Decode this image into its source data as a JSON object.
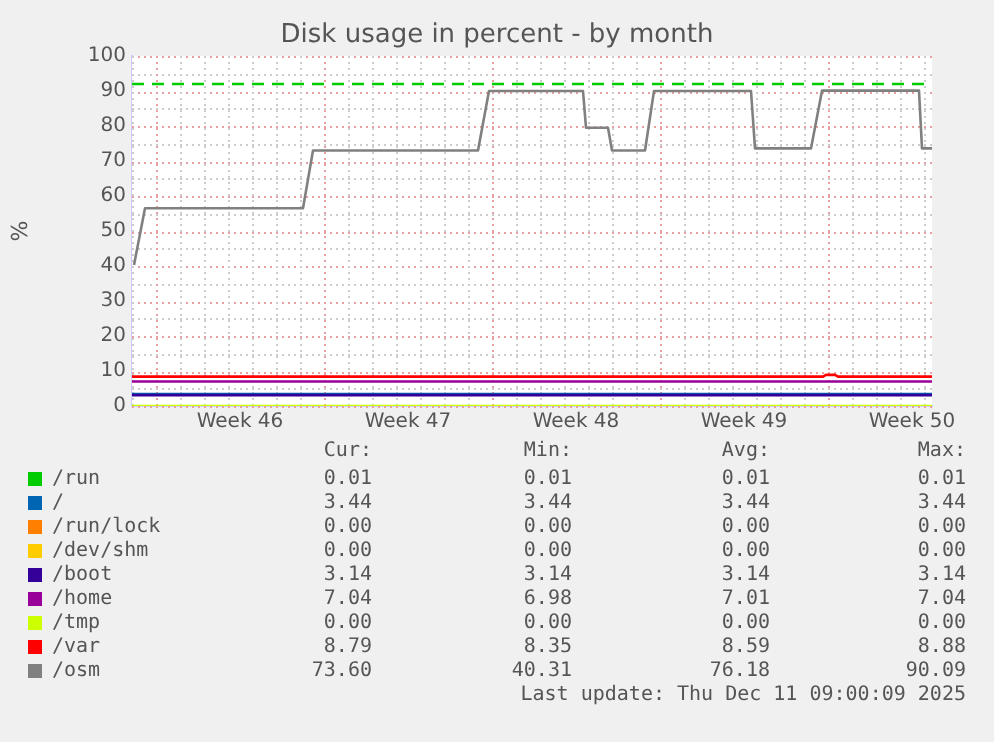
{
  "chart_data": {
    "type": "line",
    "title": "Disk usage in percent - by month",
    "ylabel": "%",
    "xlim": [
      "2025-11-09T00:00",
      "2025-12-12T08:00"
    ],
    "xticks": [
      {
        "value": "2025-11-13T12:00",
        "label": "Week 46"
      },
      {
        "value": "2025-11-20T12:00",
        "label": "Week 47"
      },
      {
        "value": "2025-11-27T12:00",
        "label": "Week 48"
      },
      {
        "value": "2025-12-04T12:00",
        "label": "Week 49"
      },
      {
        "value": "2025-12-11T12:00",
        "label": "Week 50"
      }
    ],
    "ylim": [
      0,
      100
    ],
    "yticks": [
      0,
      10,
      20,
      30,
      40,
      50,
      60,
      70,
      80,
      90,
      100
    ],
    "grid": true,
    "legend": "bottom",
    "marker": "none",
    "series": [
      {
        "name": "/run",
        "color": "#00cc00"
      },
      {
        "name": "/",
        "color": "#0066b3",
        "x": [
          "2025-11-09T00:00",
          "2025-12-12T08:00"
        ],
        "values": [
          3.4,
          3.4
        ]
      },
      {
        "name": "/run/lock",
        "color": "#ff8000"
      },
      {
        "name": "/dev/shm",
        "color": "#ffcc00"
      },
      {
        "name": "/boot",
        "color": "#330099",
        "x": [
          "2025-11-09T00:00",
          "2025-12-12T08:00"
        ],
        "values": [
          3.1,
          3.1
        ]
      },
      {
        "name": "/home",
        "color": "#990099",
        "x": [
          "2025-11-09T00:00",
          "2025-12-12T08:00"
        ],
        "values": [
          7.0,
          7.0
        ]
      },
      {
        "name": "/tmp",
        "color": "#ccff00",
        "x": [
          "2025-11-09T00:00",
          "2025-12-12T08:00"
        ],
        "values": [
          0,
          0
        ]
      },
      {
        "name": "/var",
        "color": "#ff0000",
        "x": [
          "2025-11-09T00:00",
          "2025-12-07T19:00",
          "2025-12-07T22:00",
          "2025-12-08T07:00",
          "2025-12-08T10:00",
          "2025-12-12T08:00"
        ],
        "values": [
          8.4,
          8.4,
          8.9,
          8.9,
          8.4,
          8.4
        ]
      },
      {
        "name": "/osm",
        "color": "#808080",
        "x": [
          "2025-11-09T02:00",
          "2025-11-09T13:00",
          "2025-11-16T03:00",
          "2025-11-16T13:00",
          "2025-11-23T10:00",
          "2025-11-23T21:00",
          "2025-11-27T19:00",
          "2025-11-27T22:00",
          "2025-11-28T20:00",
          "2025-11-29T00:00",
          "2025-11-30T09:00",
          "2025-11-30T18:00",
          "2025-12-04T19:00",
          "2025-12-04T23:00",
          "2025-12-07T07:00",
          "2025-12-07T18:00",
          "2025-12-11T19:00",
          "2025-12-11T22:00",
          "2025-12-12T08:00"
        ],
        "values": [
          40.3,
          56.5,
          56.5,
          73,
          73,
          90,
          90,
          79.5,
          79.5,
          73,
          73,
          90,
          90,
          73.6,
          73.6,
          90.1,
          90.1,
          73.6,
          73.6
        ]
      }
    ],
    "ref_lines": [
      {
        "axis": "y",
        "value": 92,
        "color": "#00cc00",
        "line_style": "dashed"
      }
    ],
    "annotations": [
      "Cur:",
      "Min:",
      "Avg:",
      "Max:",
      "0.01",
      "0.01",
      "0.01",
      "0.01",
      "3.44",
      "3.44",
      "3.44",
      "3.44",
      "0.00",
      "0.00",
      "0.00",
      "0.00",
      "0.00",
      "0.00",
      "0.00",
      "0.00",
      "3.14",
      "3.14",
      "3.14",
      "3.14",
      "7.04",
      "6.98",
      "7.01",
      "7.04",
      "0.00",
      "0.00",
      "0.00",
      "0.00",
      "8.79",
      "8.35",
      "8.59",
      "8.88",
      "73.60",
      "40.31",
      "76.18",
      "90.09",
      "Last update: Thu Dec 11 09:00:09 2025"
    ]
  }
}
